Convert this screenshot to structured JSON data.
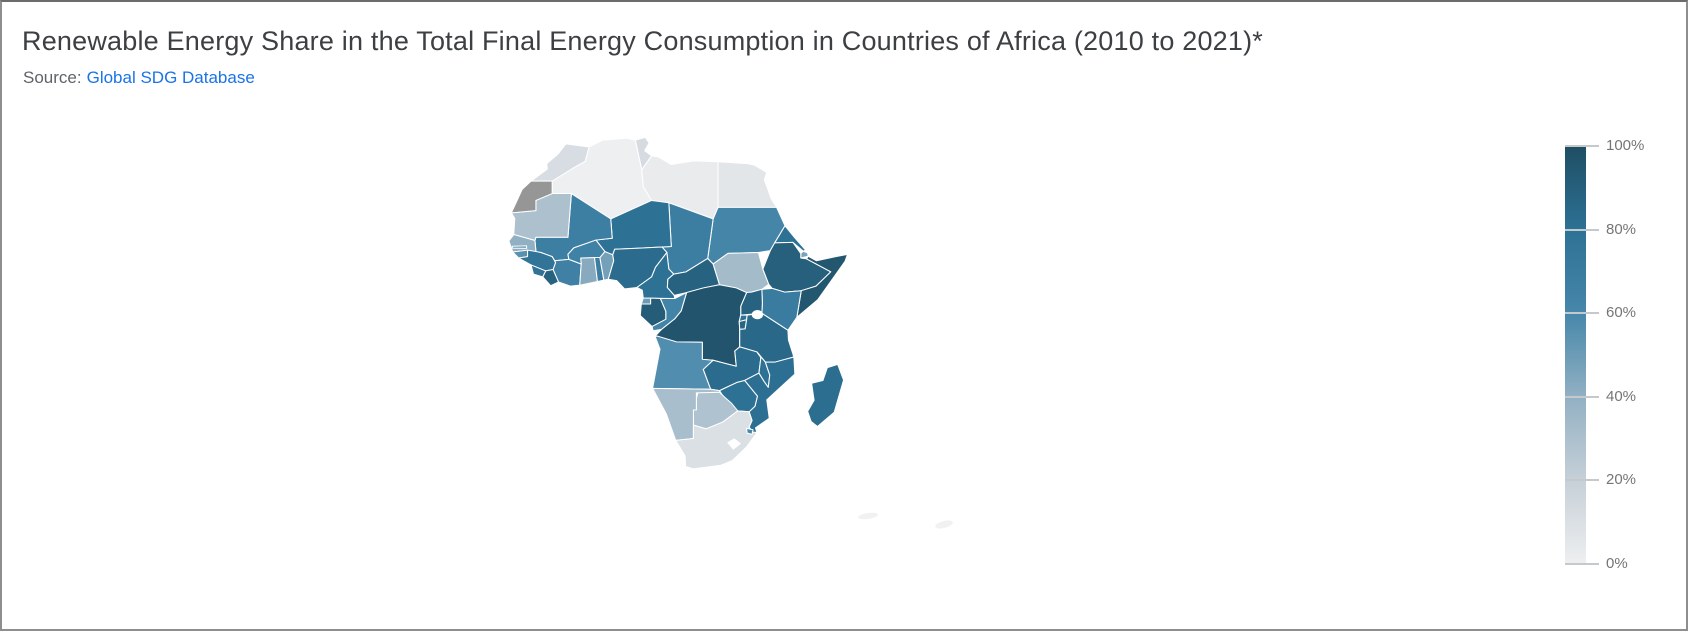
{
  "chart_data": {
    "type": "choropleth",
    "title": "Renewable Energy Share in the Total Final Energy Consumption in Countries of Africa (2010 to 2021)*",
    "source_label": "Source:",
    "source_link_text": "Global SDG Database",
    "unit": "%",
    "legend": {
      "position": "right",
      "orientation": "vertical",
      "min": 0,
      "max": 100,
      "ticks": [
        "100%",
        "80%",
        "60%",
        "40%",
        "20%",
        "0%"
      ]
    },
    "color_scale": {
      "stops": [
        [
          0.0,
          "#eeeff0"
        ],
        [
          0.2,
          "#c6d0d8"
        ],
        [
          0.4,
          "#92b0c3"
        ],
        [
          0.6,
          "#4687aa"
        ],
        [
          0.8,
          "#2d7195"
        ],
        [
          1.0,
          "#1f4e63"
        ]
      ],
      "no_data_color": "#969696",
      "lake_color": "#ffffff",
      "border_color": "#ffffff"
    },
    "countries": [
      {
        "id": "algeria",
        "name": "Algeria",
        "value": 0.2
      },
      {
        "id": "libya",
        "name": "Libya",
        "value": 2.3
      },
      {
        "id": "egypt",
        "name": "Egypt",
        "value": 5.9
      },
      {
        "id": "sudan",
        "name": "Sudan",
        "value": 62
      },
      {
        "id": "chad",
        "name": "Chad",
        "value": 68
      },
      {
        "id": "niger",
        "name": "Niger",
        "value": 80
      },
      {
        "id": "mali",
        "name": "Mali",
        "value": 67
      },
      {
        "id": "mauritania",
        "name": "Mauritania",
        "value": 30
      },
      {
        "id": "morocco",
        "name": "Morocco",
        "value": 11.4
      },
      {
        "id": "western-sahara",
        "name": "Western Sahara",
        "value": null,
        "color": "#969696"
      },
      {
        "id": "tunisia",
        "name": "Tunisia",
        "value": 12.6
      },
      {
        "id": "senegal",
        "name": "Senegal",
        "value": 40
      },
      {
        "id": "gambia",
        "name": "Gambia",
        "value": 51
      },
      {
        "id": "guinea-bissau",
        "name": "Guinea-Bissau",
        "value": 55
      },
      {
        "id": "guinea",
        "name": "Guinea",
        "value": 77
      },
      {
        "id": "sierra-leone",
        "name": "Sierra Leone",
        "value": 78
      },
      {
        "id": "liberia",
        "name": "Liberia",
        "value": 88
      },
      {
        "id": "cote-divoire",
        "name": "Côte d'Ivoire",
        "value": 66
      },
      {
        "id": "ghana",
        "name": "Ghana",
        "value": 43
      },
      {
        "id": "togo",
        "name": "Togo",
        "value": 68
      },
      {
        "id": "benin",
        "name": "Benin",
        "value": 48
      },
      {
        "id": "burkina-faso",
        "name": "Burkina Faso",
        "value": 65
      },
      {
        "id": "nigeria",
        "name": "Nigeria",
        "value": 83
      },
      {
        "id": "cameroon",
        "name": "Cameroon",
        "value": 80
      },
      {
        "id": "central-african-republic",
        "name": "Central African Republic",
        "value": 88
      },
      {
        "id": "south-sudan",
        "name": "South Sudan",
        "value": 33
      },
      {
        "id": "eritrea",
        "name": "Eritrea",
        "value": 80
      },
      {
        "id": "djibouti",
        "name": "Djibouti",
        "value": 46
      },
      {
        "id": "ethiopia",
        "name": "Ethiopia",
        "value": 90
      },
      {
        "id": "somalia",
        "name": "Somalia",
        "value": 95
      },
      {
        "id": "kenya",
        "name": "Kenya",
        "value": 70
      },
      {
        "id": "uganda",
        "name": "Uganda",
        "value": 88
      },
      {
        "id": "dr-congo",
        "name": "Democratic Republic of the Congo",
        "value": 96
      },
      {
        "id": "equatorial-guinea",
        "name": "Equatorial Guinea",
        "value": 50
      },
      {
        "id": "gabon",
        "name": "Gabon",
        "value": 92
      },
      {
        "id": "congo",
        "name": "Republic of the Congo",
        "value": 63
      },
      {
        "id": "rwanda",
        "name": "Rwanda",
        "value": 79
      },
      {
        "id": "burundi",
        "name": "Burundi",
        "value": 87
      },
      {
        "id": "tanzania",
        "name": "Tanzania",
        "value": 85
      },
      {
        "id": "angola",
        "name": "Angola",
        "value": 57
      },
      {
        "id": "zambia",
        "name": "Zambia",
        "value": 83
      },
      {
        "id": "malawi",
        "name": "Malawi",
        "value": 80
      },
      {
        "id": "mozambique",
        "name": "Mozambique",
        "value": 81
      },
      {
        "id": "zimbabwe",
        "name": "Zimbabwe",
        "value": 80
      },
      {
        "id": "botswana",
        "name": "Botswana",
        "value": 29
      },
      {
        "id": "namibia",
        "name": "Namibia",
        "value": 31
      },
      {
        "id": "south-africa",
        "name": "South Africa",
        "value": 10
      },
      {
        "id": "lesotho",
        "name": "Lesotho",
        "value": null,
        "color": "#ffffff"
      },
      {
        "id": "eswatini",
        "name": "Eswatini",
        "value": 60
      },
      {
        "id": "madagascar",
        "name": "Madagascar",
        "value": 82
      }
    ]
  }
}
